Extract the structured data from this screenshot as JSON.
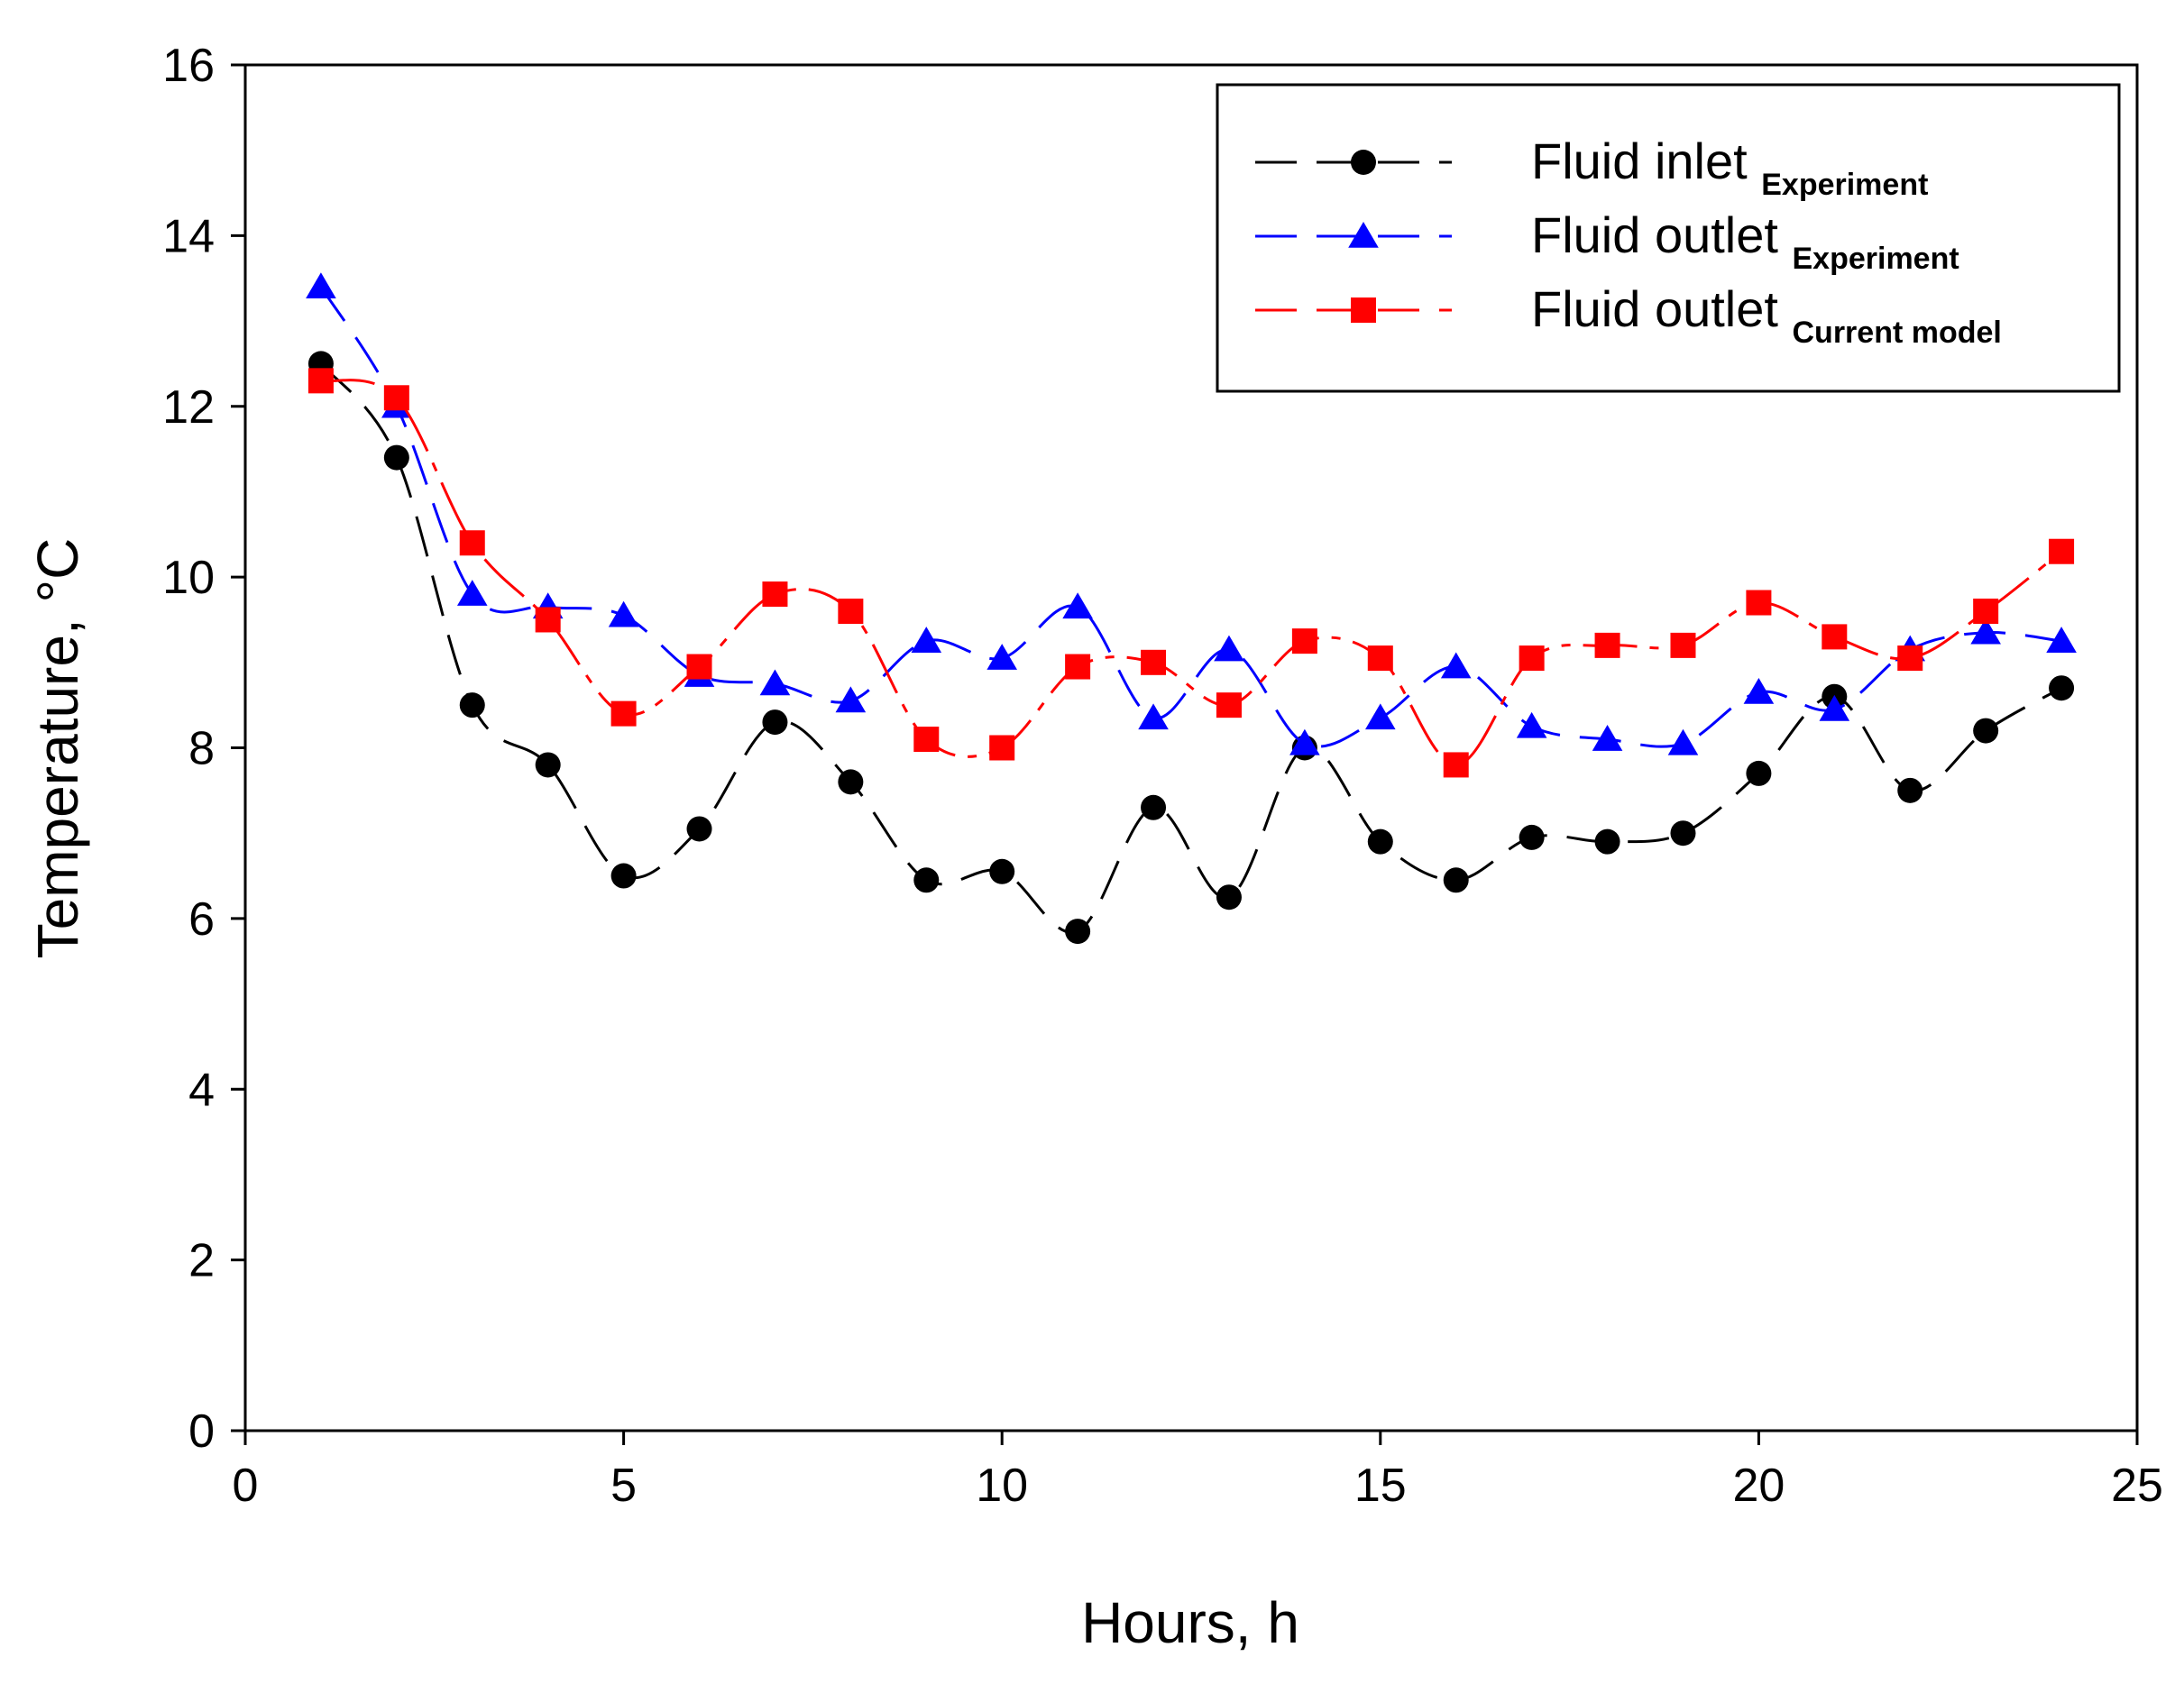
{
  "chart_data": {
    "type": "line",
    "xlabel": "Hours, h",
    "ylabel": "Temperature, °C",
    "xlim": [
      0,
      25
    ],
    "ylim": [
      0,
      16
    ],
    "xticks": [
      0,
      5,
      10,
      15,
      20,
      25
    ],
    "yticks": [
      0,
      2,
      4,
      6,
      8,
      10,
      12,
      14,
      16
    ],
    "grid": false,
    "legend_position": "top-right",
    "x": [
      1,
      2,
      3,
      4,
      5,
      6,
      7,
      8,
      9,
      10,
      11,
      12,
      13,
      14,
      15,
      16,
      17,
      18,
      19,
      20,
      21,
      22,
      23,
      24
    ],
    "series": [
      {
        "name": "Fluid inlet",
        "subscript": "Experiment",
        "color": "#000000",
        "marker": "circle",
        "line_style": "long-dash",
        "values": [
          12.5,
          11.4,
          8.5,
          7.8,
          6.5,
          7.05,
          8.3,
          7.6,
          6.45,
          6.55,
          5.85,
          7.3,
          6.25,
          8.0,
          6.9,
          6.45,
          6.95,
          6.9,
          7.0,
          7.7,
          8.6,
          7.5,
          8.2,
          8.7
        ]
      },
      {
        "name": "Fluid outlet",
        "subscript": "Experiment",
        "color": "#0000ff",
        "marker": "triangle",
        "line_style": "long-dash",
        "values": [
          13.4,
          12.0,
          9.8,
          9.65,
          9.55,
          8.85,
          8.75,
          8.55,
          9.25,
          9.05,
          9.65,
          8.35,
          9.15,
          8.05,
          8.35,
          8.95,
          8.25,
          8.1,
          8.05,
          8.65,
          8.45,
          9.15,
          9.35,
          9.25
        ]
      },
      {
        "name": "Fluid outlet",
        "subscript": "Current model",
        "color": "#ff0000",
        "marker": "square",
        "line_style": "mixed",
        "values": [
          12.3,
          12.1,
          10.4,
          9.5,
          8.4,
          8.95,
          9.8,
          9.6,
          8.1,
          8.0,
          8.95,
          9.0,
          8.5,
          9.25,
          9.05,
          7.8,
          9.05,
          9.2,
          9.2,
          9.7,
          9.3,
          9.05,
          9.6,
          10.3
        ]
      }
    ]
  }
}
